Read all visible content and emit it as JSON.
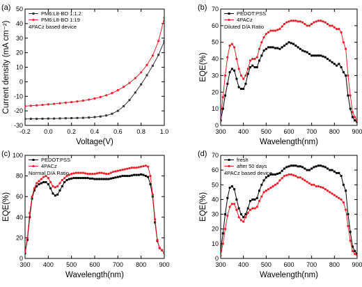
{
  "chart_data": [
    {
      "panel_label": "(a)",
      "type": "line",
      "xlabel": "Voltage(V)",
      "ylabel": "Current density (mA cm⁻²)",
      "xlim": [
        -0.2,
        1.0
      ],
      "ylim": [
        -30,
        50
      ],
      "xticks": [
        -0.2,
        0.0,
        0.2,
        0.4,
        0.6,
        0.8,
        1.0
      ],
      "xtick_labels": [
        "-0.2",
        "0.0",
        "0.2",
        "0.4",
        "0.6",
        "0.8",
        "1.0"
      ],
      "yticks": [
        -30,
        -20,
        -10,
        0,
        10,
        20,
        30,
        40,
        50
      ],
      "ytick_labels": [
        "-30",
        "-20",
        "-10",
        "0",
        "10",
        "20",
        "30",
        "40",
        "50"
      ],
      "legend_position": "top-left",
      "annotation": "4PACz based device",
      "grid": false,
      "series": [
        {
          "name": "PM6:L8-BO 1:1.2",
          "color": "#333333",
          "marker": "square",
          "x": [
            -0.2,
            -0.15,
            -0.1,
            -0.05,
            0.0,
            0.05,
            0.1,
            0.15,
            0.2,
            0.25,
            0.3,
            0.35,
            0.4,
            0.45,
            0.5,
            0.55,
            0.6,
            0.65,
            0.7,
            0.75,
            0.8,
            0.85,
            0.9,
            0.95,
            1.0
          ],
          "y": [
            -25.6,
            -25.5,
            -25.5,
            -25.4,
            -25.3,
            -25.3,
            -25.2,
            -25.1,
            -25.0,
            -24.9,
            -24.8,
            -24.6,
            -24.3,
            -23.9,
            -23.2,
            -22.0,
            -20.0,
            -16.8,
            -12.6,
            -7.4,
            -1.8,
            4.5,
            11.0,
            18.5,
            28.0
          ]
        },
        {
          "name": "PM6:L8-BO 1:19",
          "color": "#e8202a",
          "marker": "circle",
          "x": [
            -0.2,
            -0.15,
            -0.1,
            -0.05,
            0.0,
            0.05,
            0.1,
            0.15,
            0.2,
            0.25,
            0.3,
            0.35,
            0.4,
            0.45,
            0.5,
            0.55,
            0.6,
            0.65,
            0.7,
            0.75,
            0.8,
            0.85,
            0.9,
            0.95,
            1.0
          ],
          "y": [
            -16.8,
            -16.5,
            -16.2,
            -15.9,
            -15.5,
            -15.2,
            -14.8,
            -14.4,
            -14.0,
            -13.5,
            -13.0,
            -12.3,
            -11.5,
            -10.5,
            -9.3,
            -7.8,
            -5.8,
            -3.5,
            -0.8,
            2.5,
            6.5,
            11.5,
            18.0,
            28.0,
            44.0
          ]
        }
      ]
    },
    {
      "panel_label": "(b)",
      "type": "line",
      "xlabel": "Wavelength(nm)",
      "ylabel": "EQE(%)",
      "xlim": [
        300,
        900
      ],
      "ylim": [
        0,
        70
      ],
      "xticks": [
        300,
        400,
        500,
        600,
        700,
        800,
        900
      ],
      "xtick_labels": [
        "300",
        "400",
        "500",
        "600",
        "700",
        "800",
        "900"
      ],
      "yticks": [
        0,
        10,
        20,
        30,
        40,
        50,
        60,
        70
      ],
      "ytick_labels": [
        "0",
        "10",
        "20",
        "30",
        "40",
        "50",
        "60",
        "70"
      ],
      "legend_position": "top-left",
      "annotation": "Diluted D/A Ratio",
      "grid": false,
      "series": [
        {
          "name": "PEDOT:PSS",
          "color": "#000000",
          "marker": "square",
          "x": [
            300,
            310,
            320,
            330,
            340,
            350,
            360,
            370,
            380,
            390,
            400,
            410,
            420,
            430,
            440,
            450,
            460,
            470,
            480,
            490,
            500,
            510,
            520,
            530,
            540,
            550,
            560,
            570,
            580,
            590,
            600,
            610,
            620,
            630,
            640,
            650,
            660,
            670,
            680,
            690,
            700,
            710,
            720,
            730,
            740,
            750,
            760,
            770,
            780,
            790,
            800,
            810,
            820,
            830,
            840,
            850,
            860,
            870,
            880,
            890,
            900
          ],
          "y": [
            3,
            10,
            18,
            25,
            32,
            34,
            33,
            28,
            23,
            22,
            22,
            25,
            31,
            35,
            36,
            35,
            35,
            39,
            42,
            45,
            46,
            47,
            47,
            47,
            46.5,
            46.5,
            46,
            47,
            48,
            49,
            50,
            49.5,
            49,
            48,
            47,
            46,
            45,
            44.5,
            44,
            43,
            42,
            42,
            42,
            42,
            42,
            41.5,
            41,
            40,
            39,
            38,
            37,
            36,
            37,
            35,
            32,
            30,
            18,
            10,
            5,
            3,
            2
          ]
        },
        {
          "name": "4PACz",
          "color": "#e8202a",
          "marker": "circle",
          "x": [
            300,
            310,
            320,
            330,
            340,
            350,
            360,
            370,
            380,
            390,
            400,
            410,
            420,
            430,
            440,
            450,
            460,
            470,
            480,
            490,
            500,
            510,
            520,
            530,
            540,
            550,
            560,
            570,
            580,
            590,
            600,
            610,
            620,
            630,
            640,
            650,
            660,
            670,
            680,
            690,
            700,
            710,
            720,
            730,
            740,
            750,
            760,
            770,
            780,
            790,
            800,
            810,
            820,
            830,
            840,
            850,
            860,
            870,
            880,
            890,
            900
          ],
          "y": [
            5,
            17,
            30,
            41,
            48,
            49,
            47,
            40,
            34,
            30,
            28,
            30,
            34,
            39,
            40,
            40,
            41,
            46,
            50,
            53,
            55,
            56,
            57,
            57,
            57,
            57.5,
            58,
            59.5,
            61,
            62,
            62.5,
            63,
            63,
            63,
            62.5,
            62.5,
            62,
            61,
            60,
            60,
            61,
            62,
            62.5,
            63,
            63,
            62.5,
            62,
            61,
            60,
            60,
            59,
            58,
            58,
            56,
            50,
            46,
            30,
            18,
            8,
            5,
            3
          ]
        }
      ]
    },
    {
      "panel_label": "(c)",
      "type": "line",
      "xlabel": "Wavelength(nm)",
      "ylabel": "EQE(%)",
      "xlim": [
        300,
        900
      ],
      "ylim": [
        0,
        100
      ],
      "xticks": [
        300,
        400,
        500,
        600,
        700,
        800,
        900
      ],
      "xtick_labels": [
        "300",
        "400",
        "500",
        "600",
        "700",
        "800",
        "900"
      ],
      "yticks": [
        0,
        20,
        40,
        60,
        80,
        100
      ],
      "ytick_labels": [
        "0",
        "20",
        "40",
        "60",
        "80",
        "100"
      ],
      "legend_position": "top-left",
      "annotation": "Normal D/A Ratio",
      "grid": false,
      "series": [
        {
          "name": "PEDOT:PSS",
          "color": "#000000",
          "marker": "square",
          "x": [
            300,
            310,
            320,
            330,
            340,
            350,
            360,
            370,
            380,
            390,
            400,
            410,
            420,
            430,
            440,
            450,
            460,
            470,
            480,
            490,
            500,
            510,
            520,
            530,
            540,
            550,
            560,
            570,
            580,
            590,
            600,
            610,
            620,
            630,
            640,
            650,
            660,
            670,
            680,
            690,
            700,
            710,
            720,
            730,
            740,
            750,
            760,
            770,
            780,
            790,
            800,
            810,
            820,
            830,
            840,
            850,
            860,
            870,
            880,
            890,
            900
          ],
          "y": [
            5,
            18,
            40,
            58,
            66,
            70,
            72,
            73,
            74,
            74,
            72,
            68,
            63,
            61,
            62,
            66,
            70,
            74,
            76,
            77,
            77.5,
            78,
            78,
            78,
            78,
            78,
            78,
            78,
            77.5,
            77.5,
            77,
            77,
            77,
            77,
            77,
            77,
            77,
            77.5,
            78,
            78.5,
            79,
            79.5,
            80,
            80,
            80,
            80,
            80.5,
            81,
            81,
            81,
            81.5,
            81,
            80,
            79,
            72,
            60,
            35,
            17,
            10,
            8,
            5
          ]
        },
        {
          "name": "4PACz",
          "color": "#e8202a",
          "marker": "circle",
          "x": [
            300,
            310,
            320,
            330,
            340,
            350,
            360,
            370,
            380,
            390,
            400,
            410,
            420,
            430,
            440,
            450,
            460,
            470,
            480,
            490,
            500,
            510,
            520,
            530,
            540,
            550,
            560,
            570,
            580,
            590,
            600,
            610,
            620,
            630,
            640,
            650,
            660,
            670,
            680,
            690,
            700,
            710,
            720,
            730,
            740,
            750,
            760,
            770,
            780,
            790,
            800,
            810,
            820,
            830,
            840,
            850,
            860,
            870,
            880,
            890,
            900
          ],
          "y": [
            6,
            20,
            44,
            60,
            68,
            73,
            75,
            77,
            79,
            80,
            78,
            74,
            70,
            69,
            70,
            73,
            76,
            78,
            80,
            81,
            82,
            82.5,
            83,
            83,
            83,
            83,
            82.5,
            82,
            82,
            82,
            82,
            82.5,
            83,
            83,
            82.5,
            82,
            82,
            83,
            84,
            84.5,
            85,
            85.5,
            86,
            86.5,
            87,
            87.5,
            88,
            88,
            88,
            88.5,
            89,
            89.5,
            90,
            89,
            80,
            62,
            38,
            18,
            10,
            8,
            5
          ]
        }
      ]
    },
    {
      "panel_label": "(d)",
      "type": "line",
      "xlabel": "Wavelength(nm)",
      "ylabel": "EQE(%)",
      "xlim": [
        300,
        900
      ],
      "ylim": [
        0,
        70
      ],
      "xticks": [
        300,
        400,
        500,
        600,
        700,
        800,
        900
      ],
      "xtick_labels": [
        "300",
        "400",
        "500",
        "600",
        "700",
        "800",
        "900"
      ],
      "yticks": [
        0,
        10,
        20,
        30,
        40,
        50,
        60,
        70
      ],
      "ytick_labels": [
        "0",
        "10",
        "20",
        "30",
        "40",
        "50",
        "60",
        "70"
      ],
      "legend_position": "top-left",
      "annotation": "4PACz based device",
      "grid": false,
      "series": [
        {
          "name": "fresh",
          "color": "#000000",
          "marker": "square",
          "x": [
            300,
            310,
            320,
            330,
            340,
            350,
            360,
            370,
            380,
            390,
            400,
            410,
            420,
            430,
            440,
            450,
            460,
            470,
            480,
            490,
            500,
            510,
            520,
            530,
            540,
            550,
            560,
            570,
            580,
            590,
            600,
            610,
            620,
            630,
            640,
            650,
            660,
            670,
            680,
            690,
            700,
            710,
            720,
            730,
            740,
            750,
            760,
            770,
            780,
            790,
            800,
            810,
            820,
            830,
            840,
            850,
            860,
            870,
            880,
            890,
            900
          ],
          "y": [
            5,
            17,
            30,
            41,
            48,
            49,
            47,
            40,
            34,
            30,
            28,
            30,
            34,
            39,
            40,
            40,
            41,
            46,
            50,
            53,
            55,
            56,
            57,
            57,
            57,
            57.5,
            58,
            59.5,
            61,
            62,
            62.5,
            63,
            63,
            63,
            62.5,
            62.5,
            62,
            61,
            60,
            60,
            61,
            62,
            62.5,
            63,
            63,
            62.5,
            62,
            61,
            60,
            60,
            59,
            58,
            58,
            56,
            50,
            46,
            30,
            18,
            8,
            5,
            3
          ]
        },
        {
          "name": "after 50 days",
          "color": "#e8202a",
          "marker": "circle",
          "x": [
            300,
            310,
            320,
            330,
            340,
            350,
            360,
            370,
            380,
            390,
            400,
            410,
            420,
            430,
            440,
            450,
            460,
            470,
            480,
            490,
            500,
            510,
            520,
            530,
            540,
            550,
            560,
            570,
            580,
            590,
            600,
            610,
            620,
            630,
            640,
            650,
            660,
            670,
            680,
            690,
            700,
            710,
            720,
            730,
            740,
            750,
            760,
            770,
            780,
            790,
            800,
            810,
            820,
            830,
            840,
            850,
            860,
            870,
            880,
            890,
            900
          ],
          "y": [
            2,
            10,
            20,
            29,
            35,
            37,
            37,
            33,
            28,
            26,
            25,
            28,
            31,
            33,
            34,
            34,
            35,
            39,
            42,
            45,
            46,
            47,
            48,
            49,
            50,
            51,
            53,
            54.5,
            56,
            56.5,
            57,
            57,
            56.5,
            56,
            55,
            55,
            54,
            53,
            52,
            51,
            50,
            50,
            49,
            49,
            48.5,
            48,
            47,
            46,
            45,
            44,
            43,
            42,
            41,
            40,
            38,
            33,
            22,
            12,
            5,
            3,
            2
          ]
        }
      ]
    }
  ]
}
